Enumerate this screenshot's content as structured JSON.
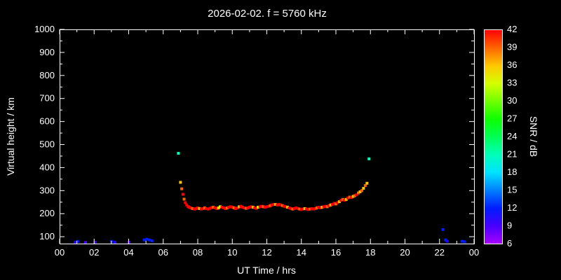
{
  "title": "2026-02-02. f = 5760 kHz",
  "chart_data": {
    "type": "scatter",
    "title": "2026-02-02. f = 5760 kHz",
    "xlabel": "UT Time / hrs",
    "ylabel": "Virtual height / km",
    "colorbar_label": "SNR / dB",
    "xlim": [
      0,
      24
    ],
    "ylim": [
      70,
      1000
    ],
    "snr_range": [
      6,
      42
    ],
    "x_ticks": [
      0,
      2,
      4,
      6,
      8,
      10,
      12,
      14,
      16,
      18,
      20,
      22,
      24
    ],
    "x_tick_labels": [
      "00",
      "02",
      "04",
      "06",
      "08",
      "10",
      "12",
      "14",
      "16",
      "18",
      "20",
      "22",
      "00"
    ],
    "y_ticks": [
      100,
      200,
      300,
      400,
      500,
      600,
      700,
      800,
      900,
      1000
    ],
    "colorbar_ticks": [
      6,
      9,
      12,
      15,
      18,
      21,
      24,
      27,
      30,
      33,
      36,
      39,
      42
    ],
    "background": "#000000",
    "axis_color": "#ffffff",
    "points_format": [
      "ut_hour",
      "virtual_height_km",
      "snr_db"
    ],
    "points": [
      [
        0.9,
        76,
        10
      ],
      [
        1.05,
        79,
        12
      ],
      [
        1.5,
        75,
        9
      ],
      [
        2.05,
        76,
        9
      ],
      [
        3.0,
        79,
        12
      ],
      [
        3.2,
        76,
        10
      ],
      [
        4.0,
        76,
        9
      ],
      [
        4.9,
        86,
        12
      ],
      [
        5.05,
        89,
        12
      ],
      [
        5.2,
        86,
        12
      ],
      [
        5.35,
        82,
        12
      ],
      [
        6.88,
        462,
        21
      ],
      [
        7.0,
        336,
        36
      ],
      [
        7.07,
        308,
        39
      ],
      [
        7.14,
        284,
        42
      ],
      [
        7.21,
        263,
        39
      ],
      [
        7.28,
        248,
        42
      ],
      [
        7.36,
        238,
        42
      ],
      [
        7.44,
        231,
        42
      ],
      [
        7.5,
        228,
        42
      ],
      [
        7.6,
        225,
        42
      ],
      [
        7.7,
        222,
        39
      ],
      [
        7.8,
        220,
        42
      ],
      [
        7.9,
        222,
        42
      ],
      [
        8.0,
        225,
        42
      ],
      [
        8.1,
        222,
        36
      ],
      [
        8.2,
        220,
        42
      ],
      [
        8.3,
        222,
        42
      ],
      [
        8.4,
        225,
        39
      ],
      [
        8.5,
        222,
        42
      ],
      [
        8.6,
        220,
        42
      ],
      [
        8.7,
        223,
        42
      ],
      [
        8.8,
        226,
        42
      ],
      [
        8.9,
        228,
        39
      ],
      [
        9.0,
        225,
        42
      ],
      [
        9.1,
        222,
        42
      ],
      [
        9.2,
        225,
        36
      ],
      [
        9.3,
        230,
        33
      ],
      [
        9.4,
        228,
        42
      ],
      [
        9.5,
        225,
        42
      ],
      [
        9.6,
        222,
        42
      ],
      [
        9.7,
        225,
        39
      ],
      [
        9.8,
        228,
        42
      ],
      [
        9.9,
        230,
        42
      ],
      [
        10.0,
        228,
        42
      ],
      [
        10.1,
        225,
        39
      ],
      [
        10.2,
        222,
        42
      ],
      [
        10.3,
        225,
        42
      ],
      [
        10.4,
        230,
        36
      ],
      [
        10.5,
        232,
        42
      ],
      [
        10.6,
        228,
        42
      ],
      [
        10.7,
        225,
        42
      ],
      [
        10.8,
        223,
        39
      ],
      [
        10.9,
        225,
        42
      ],
      [
        11.0,
        228,
        42
      ],
      [
        11.1,
        230,
        42
      ],
      [
        11.2,
        228,
        36
      ],
      [
        11.3,
        225,
        42
      ],
      [
        11.4,
        223,
        42
      ],
      [
        11.5,
        228,
        33
      ],
      [
        11.6,
        230,
        42
      ],
      [
        11.7,
        232,
        42
      ],
      [
        11.8,
        230,
        39
      ],
      [
        11.9,
        228,
        42
      ],
      [
        12.0,
        230,
        42
      ],
      [
        12.1,
        232,
        42
      ],
      [
        12.2,
        235,
        39
      ],
      [
        12.3,
        238,
        42
      ],
      [
        12.4,
        240,
        42
      ],
      [
        12.5,
        240,
        36
      ],
      [
        12.6,
        238,
        42
      ],
      [
        12.7,
        240,
        42
      ],
      [
        12.8,
        238,
        42
      ],
      [
        12.9,
        235,
        39
      ],
      [
        13.0,
        232,
        42
      ],
      [
        13.1,
        230,
        42
      ],
      [
        13.2,
        228,
        36
      ],
      [
        13.3,
        225,
        42
      ],
      [
        13.4,
        222,
        42
      ],
      [
        13.5,
        220,
        39
      ],
      [
        13.6,
        222,
        42
      ],
      [
        13.7,
        225,
        42
      ],
      [
        13.8,
        222,
        42
      ],
      [
        13.9,
        220,
        39
      ],
      [
        14.0,
        218,
        42
      ],
      [
        14.1,
        220,
        42
      ],
      [
        14.2,
        222,
        36
      ],
      [
        14.3,
        220,
        42
      ],
      [
        14.4,
        218,
        42
      ],
      [
        14.5,
        220,
        39
      ],
      [
        14.6,
        222,
        42
      ],
      [
        14.7,
        220,
        42
      ],
      [
        14.8,
        222,
        42
      ],
      [
        14.9,
        225,
        39
      ],
      [
        15.0,
        228,
        42
      ],
      [
        15.1,
        225,
        42
      ],
      [
        15.2,
        228,
        36
      ],
      [
        15.3,
        230,
        42
      ],
      [
        15.4,
        232,
        42
      ],
      [
        15.5,
        230,
        39
      ],
      [
        15.6,
        235,
        42
      ],
      [
        15.7,
        238,
        36
      ],
      [
        15.8,
        240,
        42
      ],
      [
        15.9,
        245,
        42
      ],
      [
        16.0,
        242,
        39
      ],
      [
        16.1,
        248,
        42
      ],
      [
        16.2,
        252,
        36
      ],
      [
        16.3,
        258,
        42
      ],
      [
        16.4,
        262,
        39
      ],
      [
        16.5,
        258,
        42
      ],
      [
        16.6,
        262,
        36
      ],
      [
        16.7,
        268,
        42
      ],
      [
        16.8,
        272,
        39
      ],
      [
        16.9,
        270,
        42
      ],
      [
        17.0,
        275,
        36
      ],
      [
        17.1,
        278,
        39
      ],
      [
        17.2,
        282,
        42
      ],
      [
        17.3,
        290,
        39
      ],
      [
        17.4,
        295,
        36
      ],
      [
        17.5,
        300,
        39
      ],
      [
        17.6,
        310,
        36
      ],
      [
        17.7,
        322,
        39
      ],
      [
        17.8,
        332,
        36
      ],
      [
        17.92,
        438,
        21
      ],
      [
        22.2,
        131,
        12
      ],
      [
        22.35,
        86,
        12
      ],
      [
        22.45,
        80,
        10
      ],
      [
        23.3,
        80,
        12
      ],
      [
        23.45,
        78,
        12
      ]
    ]
  }
}
